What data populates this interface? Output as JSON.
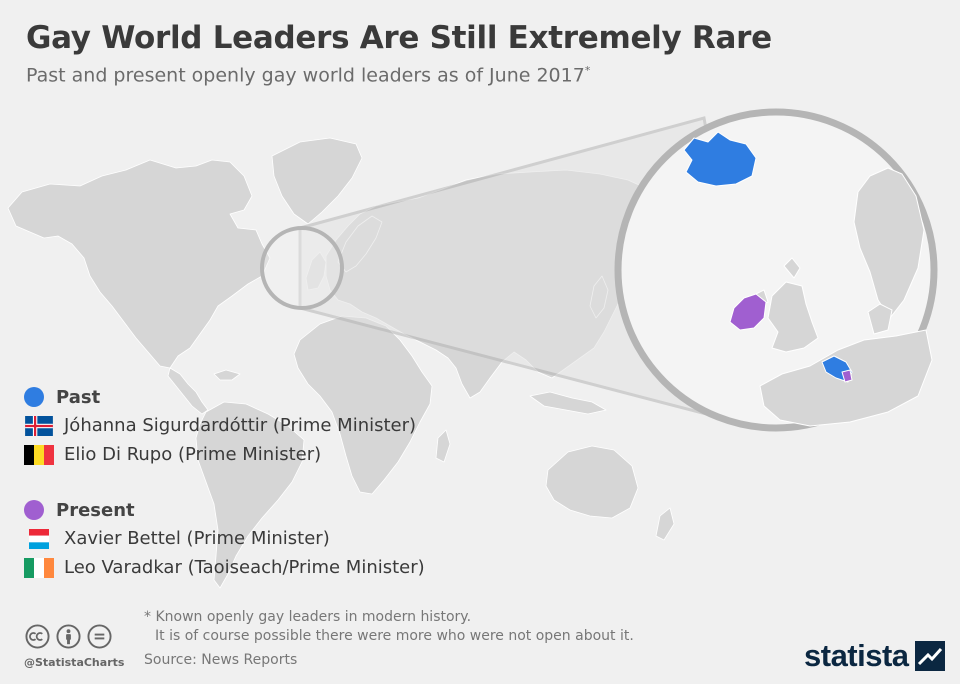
{
  "title": "Gay World Leaders Are Still Extremely Rare",
  "subtitle": "Past and present openly gay world leaders as of June 2017",
  "subtitle_mark": "*",
  "colors": {
    "past": "#2f7de1",
    "present": "#a05fd0",
    "land": "#d6d6d6",
    "background": "#f0f0f0",
    "lens_ring": "#b5b5b5"
  },
  "map": {
    "zoom_region": "Northwestern Europe",
    "highlighted": [
      {
        "country": "Iceland",
        "group": "past"
      },
      {
        "country": "Belgium",
        "group": "past"
      },
      {
        "country": "Ireland",
        "group": "present"
      },
      {
        "country": "Luxembourg",
        "group": "present"
      }
    ]
  },
  "legend": {
    "past": {
      "label": "Past",
      "leaders": [
        {
          "name": "Jóhanna Sigurdardóttir (Prime Minister)",
          "flag": "iceland-flag-icon"
        },
        {
          "name": "Elio Di Rupo (Prime Minister)",
          "flag": "belgium-flag-icon"
        }
      ]
    },
    "present": {
      "label": "Present",
      "leaders": [
        {
          "name": "Xavier Bettel (Prime Minister)",
          "flag": "luxembourg-flag-icon"
        },
        {
          "name": "Leo Varadkar (Taoiseach/Prime Minister)",
          "flag": "ireland-flag-icon"
        }
      ]
    }
  },
  "footnote": {
    "line1": "* Known openly gay leaders in modern history.",
    "line2": "It is of course possible there were more who were not open about it."
  },
  "source": "Source: News Reports",
  "handle": "@StatistaCharts",
  "brand": "statista",
  "license_icons": [
    "cc-icon",
    "by-icon",
    "nd-icon"
  ]
}
